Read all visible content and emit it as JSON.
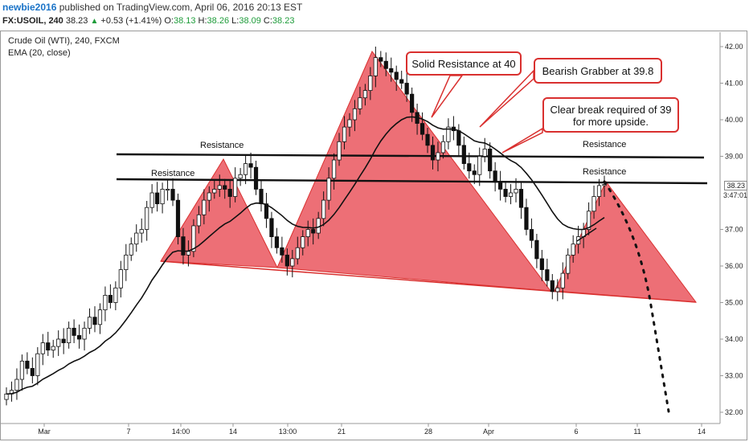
{
  "header": {
    "author": "newbie2016",
    "published_text": "published on TradingView.com, April 06, 2016 20:13 EST",
    "symbol": "FX:USOIL, 240",
    "last": "38.23",
    "change": "+0.53 (+1.41%)",
    "open_label": "O:",
    "open": "38.13",
    "high_label": "H:",
    "high": "38.26",
    "low_label": "L:",
    "low": "38.09",
    "close_label": "C:",
    "close": "38.23"
  },
  "chart_title": "Crude Oil (WTI), 240, FXCM",
  "indicator": "EMA (20, close)",
  "annotations": {
    "solid_resistance": "Solid Resistance at 40",
    "bearish_grabber": "Bearish Grabber at 39.8",
    "clear_break_1": "Clear break required of 39",
    "clear_break_2": "for more upside.",
    "resistance_label": "Resistance"
  },
  "price_tags": {
    "last": "38.23",
    "countdown": "3:47:01"
  },
  "colors": {
    "up": "#ffffff",
    "down": "#111111",
    "ema": "#111111",
    "pattern": "#e8474f",
    "accent_green": "#1e9c3a"
  },
  "chart_data": {
    "type": "candlestick",
    "ylim": [
      31.8,
      42.2
    ],
    "y_ticks": [
      "42.00",
      "41.00",
      "40.00",
      "39.00",
      "37.00",
      "36.00",
      "35.00",
      "34.00",
      "33.00",
      "32.00"
    ],
    "x_ticks": [
      "Mar",
      "7",
      "14:00",
      "14",
      "13:00",
      "21",
      "28",
      "Apr",
      "6",
      "11",
      "14"
    ],
    "resistance_levels": [
      38.95,
      38.25
    ],
    "projection_end_price": 32.0,
    "closes": [
      32.5,
      32.6,
      32.9,
      33.4,
      33.2,
      33.0,
      33.6,
      33.9,
      33.7,
      33.8,
      34.0,
      33.9,
      34.3,
      34.1,
      34.0,
      34.3,
      34.6,
      34.4,
      34.8,
      35.2,
      35.0,
      35.4,
      35.9,
      36.3,
      36.6,
      36.9,
      37.0,
      37.6,
      38.0,
      37.7,
      38.1,
      38.1,
      37.8,
      36.8,
      36.3,
      36.4,
      37.1,
      37.4,
      37.8,
      38.0,
      38.1,
      38.2,
      38.1,
      37.9,
      38.4,
      38.5,
      38.8,
      38.7,
      38.1,
      37.7,
      37.3,
      36.8,
      36.5,
      36.3,
      36.0,
      36.2,
      36.5,
      36.8,
      37.0,
      36.9,
      37.3,
      37.8,
      38.4,
      38.9,
      39.4,
      39.8,
      40.0,
      40.3,
      40.6,
      40.8,
      41.2,
      41.7,
      41.6,
      41.4,
      41.3,
      41.1,
      41.0,
      40.7,
      40.2,
      39.9,
      39.6,
      39.3,
      38.9,
      39.1,
      39.4,
      39.8,
      39.7,
      39.3,
      38.8,
      38.6,
      38.5,
      39.0,
      39.2,
      38.6,
      38.3,
      38.1,
      37.9,
      38.0,
      38.1,
      37.6,
      37.0,
      36.7,
      36.2,
      35.9,
      35.6,
      35.3,
      35.4,
      35.8,
      36.3,
      36.6,
      36.8,
      37.0,
      37.5,
      37.9,
      38.2,
      38.23
    ]
  }
}
